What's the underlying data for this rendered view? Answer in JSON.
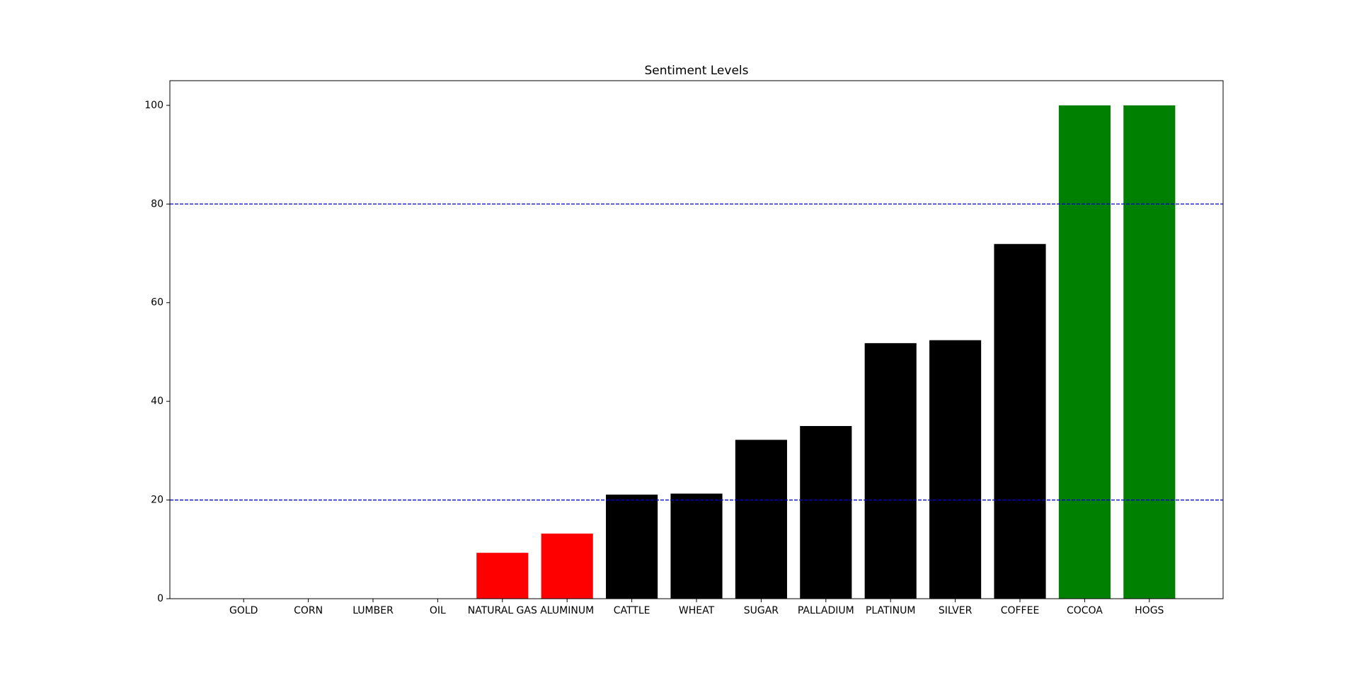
{
  "chart_data": {
    "type": "bar",
    "title": "Sentiment Levels",
    "categories": [
      "GOLD",
      "CORN",
      "LUMBER",
      "OIL",
      "NATURAL GAS",
      "ALUMINUM",
      "CATTLE",
      "WHEAT",
      "SUGAR",
      "PALLADIUM",
      "PLATINUM",
      "SILVER",
      "COFFEE",
      "COCOA",
      "HOGS"
    ],
    "values": [
      0,
      0,
      0,
      0,
      9.3,
      13.2,
      21.1,
      21.3,
      32.2,
      35.0,
      51.8,
      52.4,
      71.9,
      100,
      100
    ],
    "colors": [
      "#ff0000",
      "#ff0000",
      "#ff0000",
      "#ff0000",
      "#ff0000",
      "#ff0000",
      "#000000",
      "#000000",
      "#000000",
      "#000000",
      "#000000",
      "#000000",
      "#000000",
      "#008000",
      "#008000"
    ],
    "ylim": [
      0,
      105
    ],
    "yticks": [
      0,
      20,
      40,
      60,
      80,
      100
    ],
    "reference_lines": [
      20,
      80
    ],
    "reference_line_color": "#0000cc"
  }
}
